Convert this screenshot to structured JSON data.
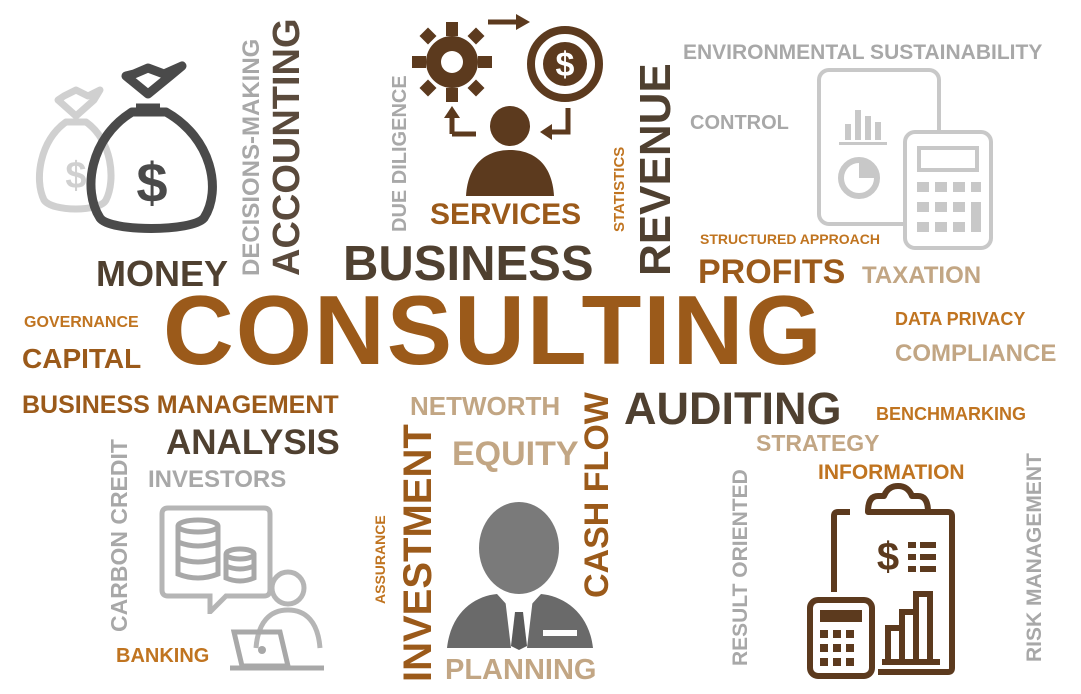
{
  "colors": {
    "brown": "#9b5a1a",
    "orange": "#c07420",
    "dark": "#5a4a3c",
    "grey": "#a8a8a8",
    "tan": "#c2a684",
    "icon_dark": "#4a4a4a",
    "icon_brown": "#5c3a1e",
    "icon_light": "#c8c8c8"
  },
  "words": {
    "consulting": "CONSULTING",
    "money": "MONEY",
    "decisions_making": "DECISIONS-MAKING",
    "accounting": "ACCOUNTING",
    "due_diligence": "DUE DILIGENCE",
    "services": "SERVICES",
    "business": "BUSINESS",
    "statistics": "STATISTICS",
    "revenue": "REVENUE",
    "environmental_sustainability": "ENVIRONMENTAL SUSTAINABILITY",
    "control": "CONTROL",
    "structured_approach": "STRUCTURED APPROACH",
    "profits": "PROFITS",
    "taxation": "TAXATION",
    "governance": "GOVERNANCE",
    "capital": "CAPITAL",
    "data_privacy": "DATA PRIVACY",
    "compliance": "COMPLIANCE",
    "business_management": "BUSINESS MANAGEMENT",
    "analysis": "ANALYSIS",
    "networth": "NETWORTH",
    "equity": "EQUITY",
    "auditing": "AUDITING",
    "benchmarking": "BENCHMARKING",
    "strategy": "STRATEGY",
    "information": "INFORMATION",
    "investors": "INVESTORS",
    "carbon_credit": "CARBON CREDIT",
    "banking": "BANKING",
    "assurance": "ASSURANCE",
    "investment": "INVESTMENT",
    "cash_flow": "CASH FLOW",
    "planning": "PLANNING",
    "result_oriented": "RESULT ORIENTED",
    "risk_management": "RISK MANAGEMENT"
  },
  "icons": {
    "money_bags": "money-bags-icon",
    "services_cycle": "gear-dollar-cycle-icon",
    "phone_calculator": "phone-calculator-icon",
    "database_chat": "database-chat-icon",
    "person_laptop": "person-laptop-icon",
    "businessman": "businessman-icon",
    "clipboard_finance": "clipboard-finance-icon"
  }
}
